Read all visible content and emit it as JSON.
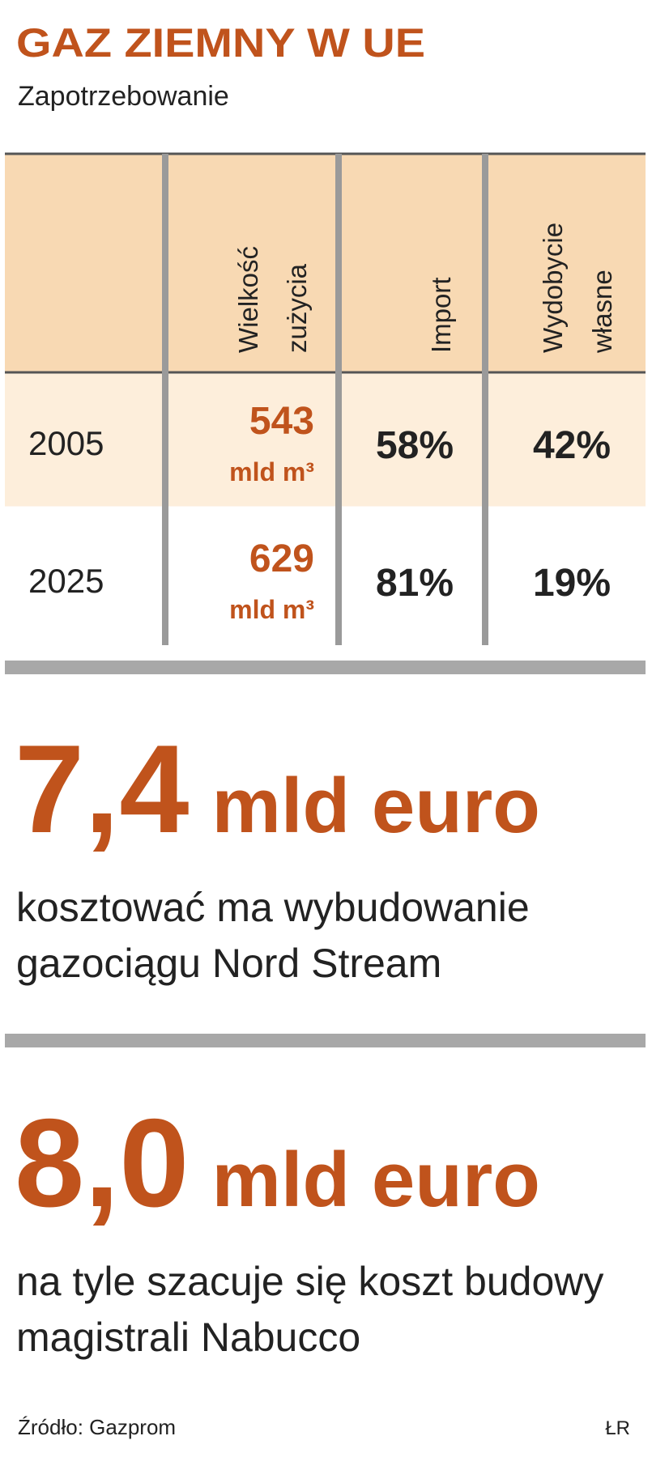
{
  "header": {
    "title": "GAZ ZIEMNY W UE",
    "subtitle": "Zapotrzebowanie"
  },
  "table": {
    "columns": [
      [
        "Wielkość",
        "zużycia"
      ],
      [
        "Import"
      ],
      [
        "Wydobycie",
        "własne"
      ]
    ],
    "rows": [
      {
        "year": "2005",
        "consumption": "543",
        "unit": "mld m³",
        "import": "58%",
        "own": "42%"
      },
      {
        "year": "2025",
        "consumption": "629",
        "unit": "mld m³",
        "import": "81%",
        "own": "19%"
      }
    ]
  },
  "facts": [
    {
      "value": "7,4",
      "unit": "mld euro",
      "lines": [
        "kosztować ma wybudowanie",
        "gazociągu Nord Stream"
      ]
    },
    {
      "value": "8,0",
      "unit": "mld euro",
      "lines": [
        "na tyle szacuje się koszt budowy",
        "magistrali Nabucco"
      ]
    }
  ],
  "footer": {
    "source": "Źródło: Gazprom",
    "credit": "ŁR"
  }
}
